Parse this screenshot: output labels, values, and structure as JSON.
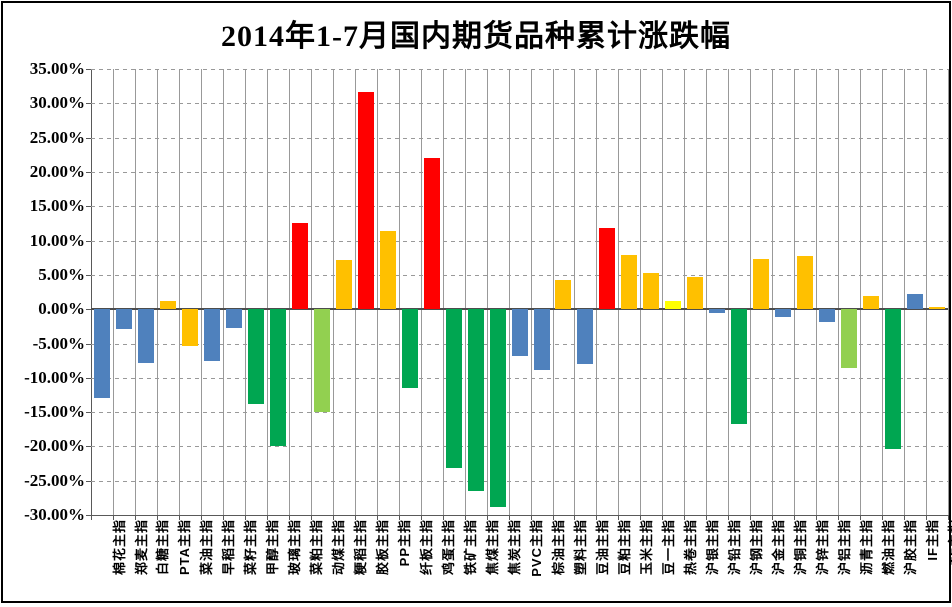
{
  "title": "2014年1-7月国内期货品种累计涨跌幅",
  "colors": {
    "blue": "#4F81BD",
    "gold": "#FFC000",
    "red": "#FF0000",
    "green": "#00A651",
    "light_green": "#92D050",
    "yellow": "#FFFF00",
    "gridline": "#999999",
    "axis": "#595959",
    "text": "#000000",
    "background": "#FFFFFF"
  },
  "chart_data": {
    "type": "bar",
    "title": "2014年1-7月国内期货品种累计涨跌幅",
    "xlabel": "",
    "ylabel": "",
    "ylim": [
      -30,
      35
    ],
    "ytick_step": 5,
    "ytick_format": "0.00%",
    "yticks": [
      "35.00%",
      "30.00%",
      "25.00%",
      "20.00%",
      "15.00%",
      "10.00%",
      "5.00%",
      "0.00%",
      "-5.00%",
      "-10.00%",
      "-15.00%",
      "-20.00%",
      "-25.00%",
      "-30.00%"
    ],
    "grid": true,
    "legend": false,
    "categories": [
      "棉花主指",
      "郑麦主指",
      "白糖主指",
      "PTA主指",
      "菜油主指",
      "早稻主指",
      "菜籽主指",
      "甲醇主指",
      "玻璃主指",
      "菜粕主指",
      "动煤主指",
      "粳稻主指",
      "胶板主指",
      "PP主指",
      "纤板主指",
      "鸡蛋主指",
      "铁矿主指",
      "焦煤主指",
      "焦炭主指",
      "PVC主指",
      "棕油主指",
      "塑料主指",
      "豆油主指",
      "豆粕主指",
      "玉米主指",
      "豆一主指",
      "热卷主指",
      "沪银主指",
      "沪铅主指",
      "沪钢主指",
      "沪金主指",
      "沪铜主指",
      "沪锌主指",
      "沪铝主指",
      "沥青主指",
      "燃油主指",
      "沪胶主指",
      "IF主指",
      "TF主指"
    ],
    "values": [
      -13.0,
      -2.9,
      -7.9,
      1.2,
      -5.4,
      -7.6,
      -2.8,
      -13.8,
      -20.0,
      12.6,
      -15.0,
      7.2,
      31.7,
      11.4,
      -11.5,
      22.1,
      -23.2,
      -26.5,
      -28.8,
      -6.8,
      -8.8,
      4.3,
      -8.0,
      11.8,
      7.9,
      5.3,
      1.2,
      4.7,
      -0.5,
      -16.8,
      7.3,
      -1.1,
      7.8,
      -1.9,
      -8.6,
      1.9,
      -20.4,
      2.2,
      0.3
    ],
    "bar_color_keys": [
      "blue",
      "blue",
      "blue",
      "gold",
      "gold",
      "blue",
      "blue",
      "green",
      "green",
      "red",
      "light_green",
      "gold",
      "red",
      "gold",
      "green",
      "red",
      "green",
      "green",
      "green",
      "blue",
      "blue",
      "gold",
      "blue",
      "red",
      "gold",
      "gold",
      "yellow",
      "gold",
      "blue",
      "green",
      "gold",
      "blue",
      "gold",
      "blue",
      "light_green",
      "gold",
      "green",
      "blue",
      "gold"
    ]
  }
}
